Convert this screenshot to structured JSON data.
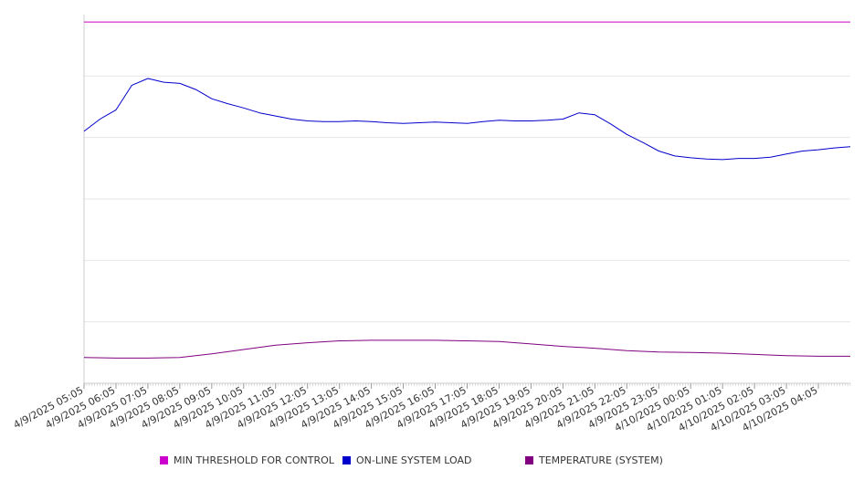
{
  "chart_data": {
    "type": "line",
    "title": "",
    "xlabel": "",
    "ylabel": "",
    "x_ticks": [
      "4/9/2025 05:05",
      "4/9/2025 06:05",
      "4/9/2025 07:05",
      "4/9/2025 08:05",
      "4/9/2025 09:05",
      "4/9/2025 10:05",
      "4/9/2025 11:05",
      "4/9/2025 12:05",
      "4/9/2025 13:05",
      "4/9/2025 14:05",
      "4/9/2025 15:05",
      "4/9/2025 16:05",
      "4/9/2025 17:05",
      "4/9/2025 18:05",
      "4/9/2025 19:05",
      "4/9/2025 20:05",
      "4/9/2025 21:05",
      "4/9/2025 22:05",
      "4/9/2025 23:05",
      "4/10/2025 00:05",
      "4/10/2025 01:05",
      "4/10/2025 02:05",
      "4/10/2025 03:05",
      "4/10/2025 04:05"
    ],
    "x_range": [
      "4/9/2025 05:05",
      "4/10/2025 05:05"
    ],
    "y_range": [
      0,
      6
    ],
    "y_gridlines": [
      1,
      2,
      3,
      4,
      5
    ],
    "y_tick_labels_shown": false,
    "grid": true,
    "legend_position": "bottom",
    "series": [
      {
        "name": "MIN THRESHOLD FOR CONTROL",
        "color": "#cc00cc",
        "x": [
          "4/9/2025 05:05",
          "4/10/2025 05:05"
        ],
        "y": [
          5.88,
          5.88
        ]
      },
      {
        "name": "ON-LINE SYSTEM LOAD",
        "color": "#0000cc",
        "x": [
          "4/9/2025 05:05",
          "4/9/2025 05:35",
          "4/9/2025 06:05",
          "4/9/2025 06:35",
          "4/9/2025 07:05",
          "4/9/2025 07:35",
          "4/9/2025 08:05",
          "4/9/2025 08:35",
          "4/9/2025 09:05",
          "4/9/2025 09:35",
          "4/9/2025 10:05",
          "4/9/2025 10:35",
          "4/9/2025 11:05",
          "4/9/2025 11:35",
          "4/9/2025 12:05",
          "4/9/2025 12:35",
          "4/9/2025 13:05",
          "4/9/2025 13:35",
          "4/9/2025 14:05",
          "4/9/2025 14:35",
          "4/9/2025 15:05",
          "4/9/2025 15:35",
          "4/9/2025 16:05",
          "4/9/2025 16:35",
          "4/9/2025 17:05",
          "4/9/2025 17:35",
          "4/9/2025 18:05",
          "4/9/2025 18:35",
          "4/9/2025 19:05",
          "4/9/2025 19:35",
          "4/9/2025 20:05",
          "4/9/2025 20:35",
          "4/9/2025 21:05",
          "4/9/2025 21:35",
          "4/9/2025 22:05",
          "4/9/2025 22:35",
          "4/9/2025 23:05",
          "4/9/2025 23:35",
          "4/10/2025 00:05",
          "4/10/2025 00:35",
          "4/10/2025 01:05",
          "4/10/2025 01:35",
          "4/10/2025 02:05",
          "4/10/2025 02:35",
          "4/10/2025 03:05",
          "4/10/2025 03:35",
          "4/10/2025 04:05",
          "4/10/2025 04:35",
          "4/10/2025 05:05"
        ],
        "y": [
          4.1,
          4.3,
          4.45,
          4.85,
          4.96,
          4.9,
          4.88,
          4.78,
          4.63,
          4.55,
          4.48,
          4.4,
          4.35,
          4.3,
          4.27,
          4.26,
          4.26,
          4.27,
          4.26,
          4.24,
          4.23,
          4.24,
          4.25,
          4.24,
          4.23,
          4.26,
          4.28,
          4.27,
          4.27,
          4.28,
          4.3,
          4.4,
          4.37,
          4.22,
          4.05,
          3.92,
          3.78,
          3.7,
          3.67,
          3.65,
          3.64,
          3.66,
          3.66,
          3.68,
          3.73,
          3.78,
          3.8,
          3.83,
          3.85
        ]
      },
      {
        "name": "TEMPERATURE (SYSTEM)",
        "color": "#800080",
        "x": [
          "4/9/2025 05:05",
          "4/9/2025 06:05",
          "4/9/2025 07:05",
          "4/9/2025 08:05",
          "4/9/2025 09:05",
          "4/9/2025 10:05",
          "4/9/2025 11:05",
          "4/9/2025 12:05",
          "4/9/2025 13:05",
          "4/9/2025 14:05",
          "4/9/2025 15:05",
          "4/9/2025 16:05",
          "4/9/2025 17:05",
          "4/9/2025 18:05",
          "4/9/2025 19:05",
          "4/9/2025 20:05",
          "4/9/2025 21:05",
          "4/9/2025 22:05",
          "4/9/2025 23:05",
          "4/10/2025 00:05",
          "4/10/2025 01:05",
          "4/10/2025 02:05",
          "4/10/2025 03:05",
          "4/10/2025 04:05",
          "4/10/2025 05:05"
        ],
        "y": [
          0.42,
          0.41,
          0.41,
          0.42,
          0.48,
          0.55,
          0.62,
          0.66,
          0.69,
          0.7,
          0.7,
          0.7,
          0.69,
          0.68,
          0.64,
          0.6,
          0.57,
          0.53,
          0.51,
          0.5,
          0.49,
          0.47,
          0.45,
          0.44,
          0.44
        ]
      }
    ]
  },
  "legend": [
    {
      "label": "MIN THRESHOLD FOR CONTROL",
      "color": "#cc00cc"
    },
    {
      "label": "ON-LINE SYSTEM LOAD",
      "color": "#0000cc"
    },
    {
      "label": "TEMPERATURE (SYSTEM)",
      "color": "#800080"
    }
  ]
}
